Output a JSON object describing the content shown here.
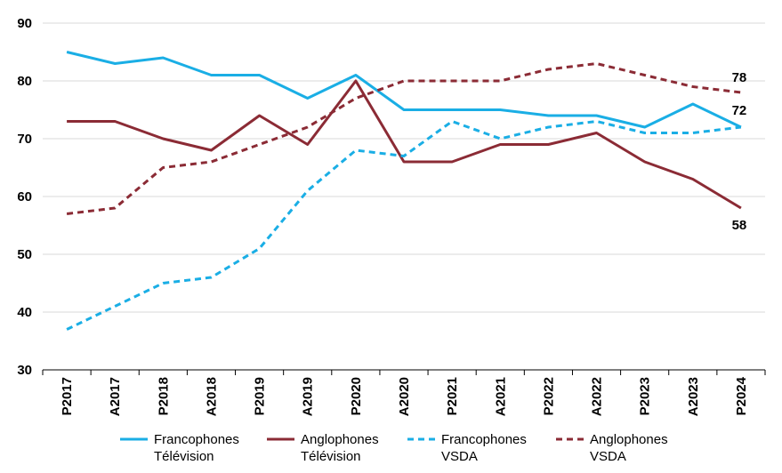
{
  "chart_data": {
    "type": "line",
    "title": "",
    "xlabel": "",
    "ylabel": "",
    "ylim": [
      30,
      90
    ],
    "yticks": [
      30,
      40,
      50,
      60,
      70,
      80,
      90
    ],
    "grid": "horizontal",
    "legend_position": "bottom",
    "categories": [
      "P2017",
      "A2017",
      "P2018",
      "A2018",
      "P2019",
      "A2019",
      "P2020",
      "A2020",
      "P2021",
      "A2021",
      "P2022",
      "A2022",
      "P2023",
      "A2023",
      "P2024"
    ],
    "series": [
      {
        "name_lines": [
          "Francophones",
          "Télévision"
        ],
        "color": "#1aaee5",
        "dash": "solid",
        "values": [
          85,
          83,
          84,
          81,
          81,
          77,
          81,
          75,
          75,
          75,
          74,
          74,
          72,
          76,
          72
        ]
      },
      {
        "name_lines": [
          "Anglophones",
          "Télévision"
        ],
        "color": "#8b2b35",
        "dash": "solid",
        "values": [
          73,
          73,
          70,
          68,
          74,
          69,
          80,
          66,
          66,
          69,
          69,
          71,
          66,
          63,
          58
        ]
      },
      {
        "name_lines": [
          "Francophones",
          "VSDA"
        ],
        "color": "#1aaee5",
        "dash": "dashed",
        "values": [
          37,
          41,
          45,
          46,
          51,
          61,
          68,
          67,
          73,
          70,
          72,
          73,
          71,
          71,
          72
        ]
      },
      {
        "name_lines": [
          "Anglophones",
          "VSDA"
        ],
        "color": "#8b2b35",
        "dash": "dashed",
        "values": [
          57,
          58,
          65,
          66,
          69,
          72,
          77,
          80,
          80,
          80,
          82,
          83,
          81,
          79,
          78
        ]
      }
    ],
    "end_labels": [
      "78",
      "72",
      "58"
    ]
  }
}
